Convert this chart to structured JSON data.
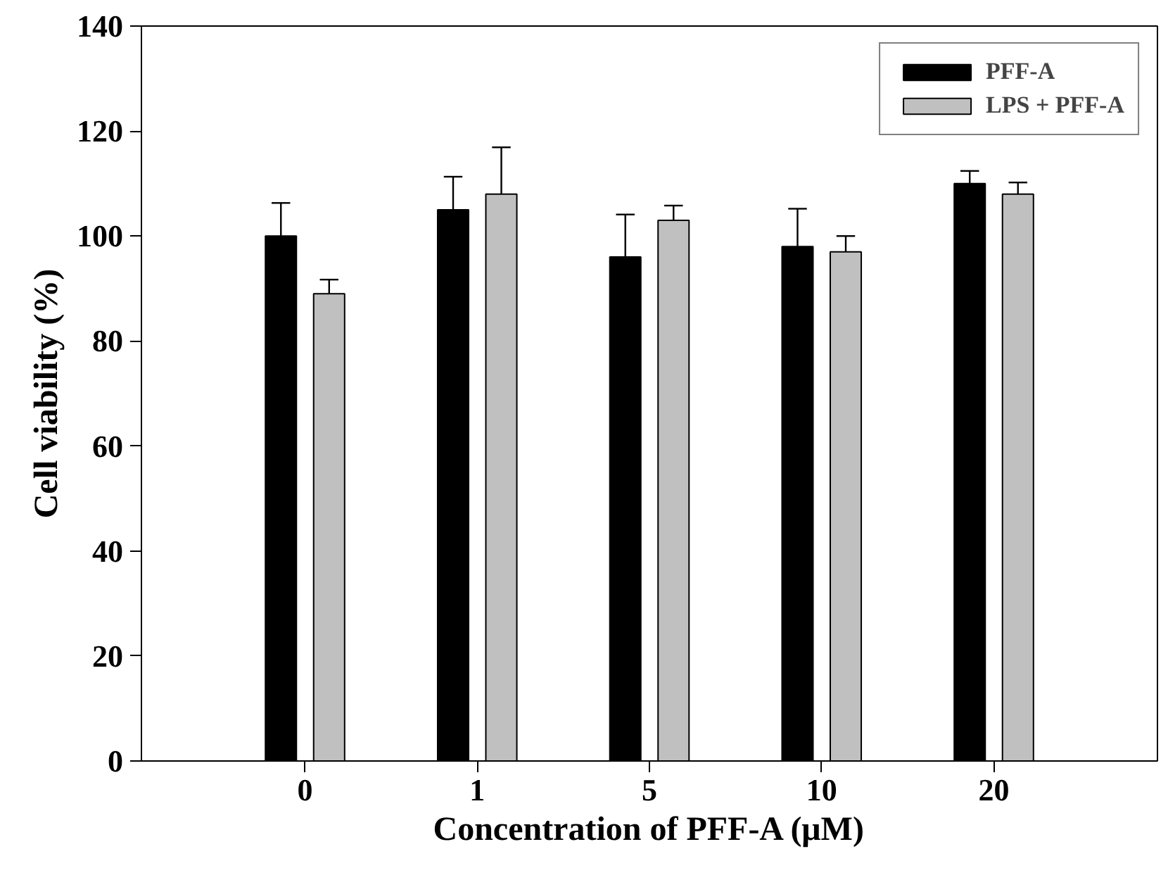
{
  "chart_data": {
    "type": "bar",
    "xlabel": "Concentration of PFF-A (μM)",
    "ylabel": "Cell viability (%)",
    "categories": [
      "0",
      "1",
      "5",
      "10",
      "20"
    ],
    "series": [
      {
        "name": "PFF-A",
        "color": "#000000",
        "values": [
          100,
          105,
          96,
          98,
          110
        ],
        "errors": [
          [
            100,
            106.3
          ],
          [
            105,
            111.3
          ],
          [
            96,
            104.1
          ],
          [
            98,
            105.2
          ],
          [
            110,
            112.4
          ]
        ]
      },
      {
        "name": "LPS + PFF-A",
        "color": "#c0c0c0",
        "values": [
          89,
          108,
          103,
          97,
          108
        ],
        "errors": [
          [
            89,
            91.7
          ],
          [
            108,
            116.9
          ],
          [
            103,
            105.8
          ],
          [
            97,
            100
          ],
          [
            108,
            110.2
          ]
        ]
      }
    ],
    "ylim": [
      0,
      140
    ],
    "yticks": [
      0,
      20,
      40,
      60,
      80,
      100,
      120,
      140
    ],
    "grid": false,
    "legend": "top right"
  }
}
